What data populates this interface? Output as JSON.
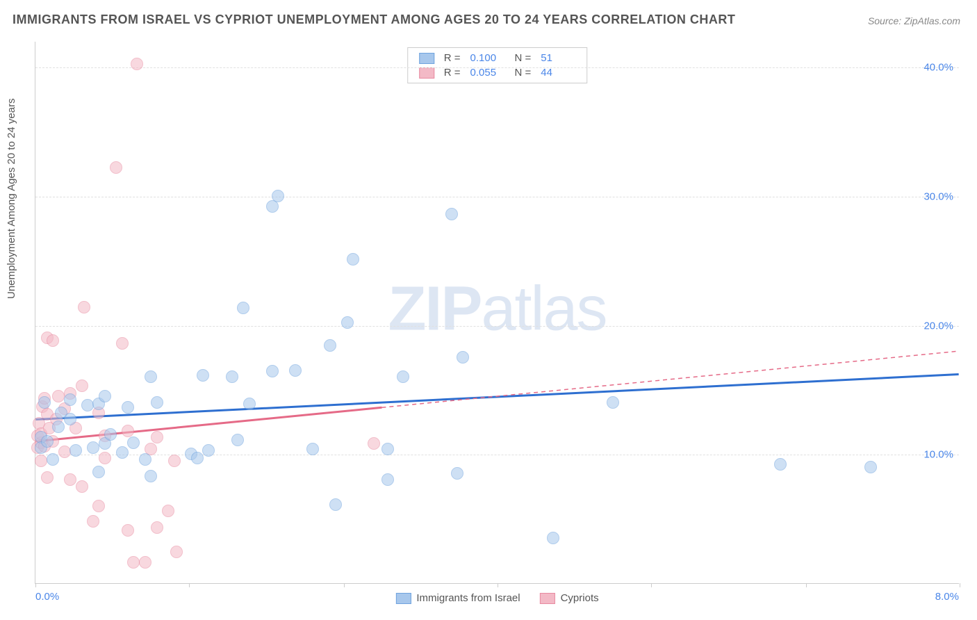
{
  "title": "IMMIGRANTS FROM ISRAEL VS CYPRIOT UNEMPLOYMENT AMONG AGES 20 TO 24 YEARS CORRELATION CHART",
  "source": "Source: ZipAtlas.com",
  "watermark_a": "ZIP",
  "watermark_b": "atlas",
  "y_axis_label": "Unemployment Among Ages 20 to 24 years",
  "chart": {
    "type": "scatter",
    "xlim": [
      0.0,
      8.0
    ],
    "ylim": [
      0.0,
      42.0
    ],
    "x_tick_positions": [
      0.0,
      1.33,
      2.67,
      4.0,
      5.33,
      6.67,
      8.0
    ],
    "x_tick_labels_shown": {
      "left": "0.0%",
      "right": "8.0%"
    },
    "y_ticks": [
      10.0,
      20.0,
      30.0,
      40.0
    ],
    "y_tick_labels": [
      "10.0%",
      "20.0%",
      "30.0%",
      "40.0%"
    ],
    "grid_color": "#e0e0e0",
    "background_color": "#ffffff",
    "marker_radius": 9,
    "marker_opacity": 0.55
  },
  "series": [
    {
      "name": "Immigrants from Israel",
      "color_fill": "#a7c7ec",
      "color_stroke": "#6fa3de",
      "trend_color": "#2e6fd0",
      "r_value": "0.100",
      "n_value": "51",
      "trend": {
        "x1": 0.0,
        "y1": 12.7,
        "x2": 8.0,
        "y2": 16.2,
        "solid_until_x": 8.0
      },
      "points": [
        [
          0.05,
          11.3
        ],
        [
          0.05,
          10.5
        ],
        [
          0.08,
          14.0
        ],
        [
          0.1,
          11.0
        ],
        [
          0.15,
          9.6
        ],
        [
          0.2,
          12.1
        ],
        [
          0.22,
          13.2
        ],
        [
          0.3,
          12.7
        ],
        [
          0.3,
          14.2
        ],
        [
          0.35,
          10.3
        ],
        [
          0.45,
          13.8
        ],
        [
          0.5,
          10.5
        ],
        [
          0.55,
          13.9
        ],
        [
          0.55,
          8.6
        ],
        [
          0.6,
          14.5
        ],
        [
          0.6,
          10.8
        ],
        [
          0.65,
          11.5
        ],
        [
          0.75,
          10.1
        ],
        [
          0.8,
          13.6
        ],
        [
          0.85,
          10.9
        ],
        [
          0.95,
          9.6
        ],
        [
          1.0,
          8.3
        ],
        [
          1.0,
          16.0
        ],
        [
          1.05,
          14.0
        ],
        [
          1.35,
          10.0
        ],
        [
          1.4,
          9.7
        ],
        [
          1.5,
          10.3
        ],
        [
          1.45,
          16.1
        ],
        [
          1.7,
          16.0
        ],
        [
          1.75,
          11.1
        ],
        [
          1.85,
          13.9
        ],
        [
          1.8,
          21.3
        ],
        [
          2.05,
          16.4
        ],
        [
          2.05,
          29.2
        ],
        [
          2.1,
          30.0
        ],
        [
          2.25,
          16.5
        ],
        [
          2.4,
          10.4
        ],
        [
          2.55,
          18.4
        ],
        [
          2.6,
          6.1
        ],
        [
          2.7,
          20.2
        ],
        [
          2.75,
          25.1
        ],
        [
          3.05,
          10.4
        ],
        [
          3.05,
          8.0
        ],
        [
          3.18,
          16.0
        ],
        [
          3.6,
          28.6
        ],
        [
          3.65,
          8.5
        ],
        [
          3.7,
          17.5
        ],
        [
          4.48,
          3.5
        ],
        [
          5.0,
          14.0
        ],
        [
          6.45,
          9.2
        ],
        [
          7.23,
          9.0
        ]
      ]
    },
    {
      "name": "Cypriots",
      "color_fill": "#f3b9c6",
      "color_stroke": "#e88aa0",
      "trend_color": "#e56a87",
      "r_value": "0.055",
      "n_value": "44",
      "trend": {
        "x1": 0.0,
        "y1": 11.0,
        "x2": 8.0,
        "y2": 18.0,
        "solid_until_x": 3.0
      },
      "points": [
        [
          0.02,
          10.5
        ],
        [
          0.02,
          11.4
        ],
        [
          0.03,
          12.4
        ],
        [
          0.05,
          9.5
        ],
        [
          0.05,
          10.9
        ],
        [
          0.05,
          11.6
        ],
        [
          0.06,
          13.7
        ],
        [
          0.08,
          10.6
        ],
        [
          0.08,
          14.3
        ],
        [
          0.1,
          13.1
        ],
        [
          0.1,
          19.0
        ],
        [
          0.1,
          8.2
        ],
        [
          0.12,
          12.0
        ],
        [
          0.15,
          11.0
        ],
        [
          0.15,
          18.8
        ],
        [
          0.18,
          12.7
        ],
        [
          0.2,
          14.5
        ],
        [
          0.25,
          10.2
        ],
        [
          0.25,
          13.5
        ],
        [
          0.3,
          8.0
        ],
        [
          0.3,
          14.7
        ],
        [
          0.35,
          12.0
        ],
        [
          0.4,
          7.5
        ],
        [
          0.4,
          15.3
        ],
        [
          0.42,
          21.4
        ],
        [
          0.5,
          4.8
        ],
        [
          0.55,
          13.2
        ],
        [
          0.55,
          6.0
        ],
        [
          0.6,
          9.7
        ],
        [
          0.6,
          11.4
        ],
        [
          0.7,
          32.2
        ],
        [
          0.75,
          18.6
        ],
        [
          0.8,
          4.1
        ],
        [
          0.8,
          11.8
        ],
        [
          0.85,
          1.6
        ],
        [
          0.88,
          40.2
        ],
        [
          0.95,
          1.6
        ],
        [
          1.0,
          10.4
        ],
        [
          1.05,
          11.3
        ],
        [
          1.05,
          4.3
        ],
        [
          1.15,
          5.6
        ],
        [
          1.2,
          9.5
        ],
        [
          1.22,
          2.4
        ],
        [
          2.93,
          10.8
        ]
      ]
    }
  ],
  "legend_top_labels": {
    "r": "R  =",
    "n": "N  ="
  },
  "legend_bottom": [
    {
      "label": "Immigrants from Israel",
      "fill": "#a7c7ec",
      "stroke": "#6fa3de"
    },
    {
      "label": "Cypriots",
      "fill": "#f3b9c6",
      "stroke": "#e88aa0"
    }
  ]
}
